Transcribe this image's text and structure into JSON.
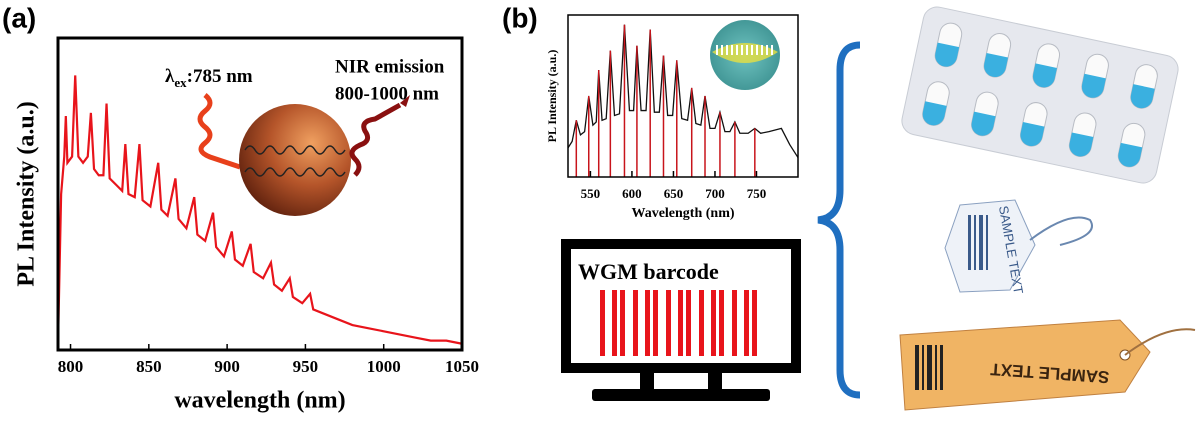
{
  "panel_labels": [
    "(a)",
    "(b)"
  ],
  "chart_data": [
    {
      "type": "line",
      "x": [
        792,
        794,
        796,
        797,
        798,
        801,
        803,
        805,
        808,
        811,
        813,
        815,
        818,
        821,
        823,
        825,
        829,
        833,
        835,
        837,
        841,
        844,
        846,
        851,
        856,
        858,
        862,
        867,
        869,
        874,
        879,
        881,
        886,
        891,
        893,
        898,
        903,
        905,
        910,
        915,
        917,
        923,
        928,
        930,
        935,
        940,
        942,
        948,
        953,
        955,
        960,
        970,
        980,
        990,
        1000,
        1010,
        1020,
        1030,
        1040,
        1050
      ],
      "series": [
        {
          "color": "#e8141b",
          "values": [
            2,
            50,
            62,
            75,
            60,
            62,
            88,
            62,
            60,
            62,
            76,
            58,
            56,
            56,
            79,
            55,
            53,
            51,
            66,
            50,
            49,
            66,
            48,
            46,
            60,
            45,
            43,
            55,
            42,
            39,
            49,
            37,
            35,
            44,
            33,
            30,
            38,
            29,
            27,
            34,
            25,
            23,
            28,
            21,
            19,
            23,
            17,
            15,
            18,
            13,
            12,
            10,
            8,
            7,
            6,
            5,
            4,
            3,
            3,
            2
          ]
        }
      ],
      "xlim": [
        792,
        1050
      ],
      "ylim": [
        0,
        100
      ],
      "xticks": [
        800,
        850,
        900,
        950,
        1000,
        1050
      ],
      "x_label": "wavelength (nm)",
      "y_label": "PL Intensity (a.u.)",
      "excitation": {
        "symbol": "λ",
        "subscript": "ex",
        "text": ":785 nm"
      },
      "emission": [
        "NIR emission",
        "800-1000 nm"
      ]
    },
    {
      "type": "line",
      "series": [
        {
          "color": "#111111",
          "x": [
            523,
            528,
            533,
            538,
            543,
            548,
            553,
            557,
            560,
            564,
            569,
            574,
            579,
            585,
            591,
            597,
            602,
            606,
            611,
            617,
            622,
            627,
            633,
            638,
            643,
            649,
            654,
            660,
            667,
            672,
            677,
            683,
            688,
            694,
            700,
            706,
            712,
            718,
            724,
            730,
            740,
            748,
            755,
            765,
            780,
            790,
            800
          ],
          "values": [
            18,
            22,
            35,
            26,
            28,
            50,
            32,
            34,
            66,
            35,
            36,
            78,
            38,
            39,
            94,
            41,
            41,
            81,
            41,
            41,
            91,
            40,
            40,
            75,
            38,
            38,
            72,
            36,
            35,
            55,
            33,
            32,
            50,
            30,
            30,
            40,
            28,
            28,
            34,
            27,
            27,
            30,
            27,
            28,
            30,
            20,
            12
          ]
        },
        {
          "type": "stick",
          "color": "#c8141b",
          "x": [
            533,
            548,
            560,
            574,
            591,
            606,
            622,
            638,
            654,
            672,
            688,
            706,
            724,
            748
          ],
          "values": [
            35,
            50,
            66,
            78,
            94,
            81,
            91,
            75,
            72,
            55,
            50,
            40,
            34,
            30
          ]
        }
      ],
      "xlim": [
        523,
        800
      ],
      "ylim": [
        0,
        100
      ],
      "xticks": [
        550,
        600,
        650,
        700,
        750
      ],
      "x_label": "Wavelength (nm)",
      "y_label": "PL Intensity (a.u.)"
    }
  ],
  "monitor": {
    "label": "WGM barcode"
  },
  "tags": [
    "SAMPLE TEXT",
    "SAMPLE TEXT"
  ]
}
